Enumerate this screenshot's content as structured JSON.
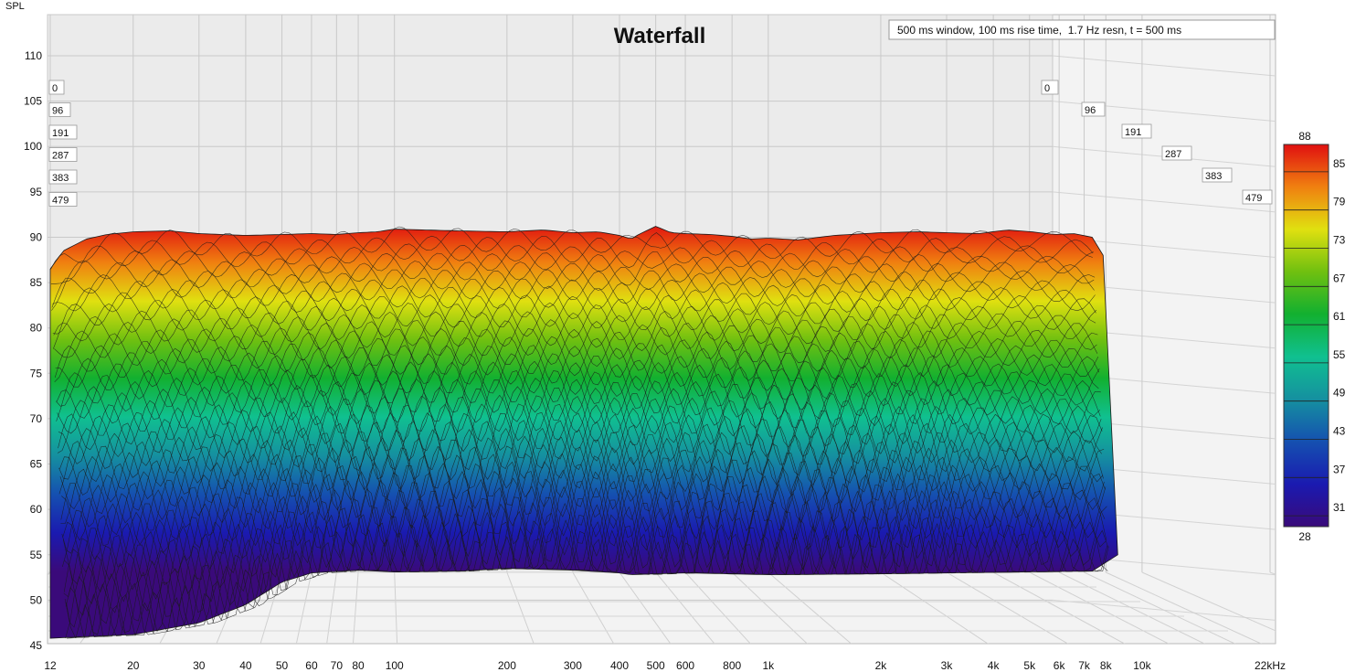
{
  "chart_data": {
    "type": "waterfall",
    "title": "Waterfall",
    "subtitle": "500 ms window, 100 ms rise time,  1.7 Hz resn, t = 500 ms",
    "ylabel": "SPL",
    "xunit": "Hz",
    "x_scale": "log",
    "xlim": [
      12,
      22000
    ],
    "ylim": [
      45,
      112
    ],
    "grid": true,
    "y_ticks": [
      45,
      50,
      55,
      60,
      65,
      70,
      75,
      80,
      85,
      90,
      95,
      100,
      105,
      110
    ],
    "x_ticks": [
      {
        "f": 12,
        "label": "12"
      },
      {
        "f": 20,
        "label": "20"
      },
      {
        "f": 30,
        "label": "30"
      },
      {
        "f": 40,
        "label": "40"
      },
      {
        "f": 50,
        "label": "50"
      },
      {
        "f": 60,
        "label": "60"
      },
      {
        "f": 70,
        "label": "70"
      },
      {
        "f": 80,
        "label": "80"
      },
      {
        "f": 100,
        "label": "100"
      },
      {
        "f": 200,
        "label": "200"
      },
      {
        "f": 300,
        "label": "300"
      },
      {
        "f": 400,
        "label": "400"
      },
      {
        "f": 500,
        "label": "500"
      },
      {
        "f": 600,
        "label": "600"
      },
      {
        "f": 800,
        "label": "800"
      },
      {
        "f": 1000,
        "label": "1k"
      },
      {
        "f": 2000,
        "label": "2k"
      },
      {
        "f": 3000,
        "label": "3k"
      },
      {
        "f": 4000,
        "label": "4k"
      },
      {
        "f": 5000,
        "label": "5k"
      },
      {
        "f": 6000,
        "label": "6k"
      },
      {
        "f": 7000,
        "label": "7k"
      },
      {
        "f": 8000,
        "label": "8k"
      },
      {
        "f": 10000,
        "label": "10k"
      },
      {
        "f": 22000,
        "label": "22kHz"
      }
    ],
    "time_slices_ms": [
      "0",
      "96",
      "191",
      "287",
      "383",
      "479"
    ],
    "colorbar": {
      "min": 28,
      "max": 88,
      "ticks": [
        85,
        79,
        73,
        67,
        61,
        55,
        49,
        43,
        37,
        31
      ],
      "colors": [
        "#3a0a7a",
        "#1a1ab0",
        "#1550b0",
        "#1590a0",
        "#10c090",
        "#12b030",
        "#70c010",
        "#e0e010",
        "#f08010",
        "#e01010"
      ]
    },
    "front_response": {
      "freq_hz": [
        12,
        13,
        15,
        17,
        20,
        25,
        30,
        40,
        50,
        60,
        70,
        80,
        90,
        100,
        120,
        150,
        200,
        250,
        300,
        350,
        400,
        430,
        450,
        500,
        550,
        600,
        700,
        800,
        900,
        1000,
        1200,
        1500,
        2000,
        2500,
        3000,
        3500,
        4000,
        4500,
        5000,
        5500,
        6000
      ],
      "spl_db": [
        86.5,
        88.5,
        89.8,
        90.3,
        90.6,
        90.7,
        90.4,
        90.2,
        90.3,
        90.4,
        90.3,
        90.5,
        90.6,
        90.9,
        90.8,
        90.7,
        90.6,
        90.8,
        90.5,
        90.6,
        90.2,
        89.8,
        90.3,
        91.2,
        90.5,
        90.4,
        90.3,
        90.1,
        89.8,
        89.9,
        89.7,
        90.2,
        90.5,
        90.6,
        90.5,
        90.4,
        90.8,
        90.6,
        90.3,
        90.4,
        90.0
      ]
    },
    "floor_response": {
      "freq_hz": [
        12,
        20,
        30,
        40,
        50,
        60,
        80,
        100,
        150,
        200,
        300,
        400,
        430,
        600,
        1000,
        2000,
        3000,
        6000
      ],
      "spl_db": [
        45.8,
        46.2,
        47.5,
        49.5,
        52.0,
        53.0,
        53.3,
        53.1,
        53.2,
        53.5,
        53.3,
        53.0,
        52.8,
        53.0,
        52.8,
        52.9,
        53.0,
        53.2
      ]
    }
  }
}
